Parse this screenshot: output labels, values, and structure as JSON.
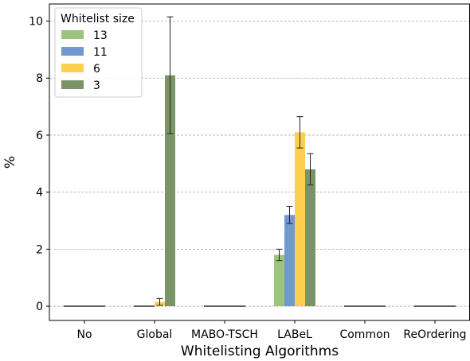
{
  "chart_data": {
    "type": "bar",
    "title": "",
    "xlabel": "Whitelisting Algorithms",
    "ylabel": "%",
    "ylim": [
      -0.5,
      10.6
    ],
    "yticks": [
      0,
      2,
      4,
      6,
      8,
      10
    ],
    "grid": "y-dashed",
    "legend": {
      "title": "Whitelist size",
      "placement": "top-left"
    },
    "categories": [
      "No",
      "Global",
      "MABO-TSCH",
      "LABeL",
      "Common",
      "ReOrdering"
    ],
    "series": [
      {
        "name": "13",
        "color": "#9dc47c",
        "values": [
          0,
          0,
          0,
          1.8,
          0,
          0
        ],
        "errors": [
          0,
          0,
          0,
          0.2,
          0,
          0
        ]
      },
      {
        "name": "11",
        "color": "#7199d0",
        "values": [
          0,
          0,
          0,
          3.2,
          0,
          0
        ],
        "errors": [
          0,
          0,
          0,
          0.3,
          0,
          0
        ]
      },
      {
        "name": "6",
        "color": "#fcd04e",
        "values": [
          0,
          0.15,
          0,
          6.1,
          0,
          0
        ],
        "errors": [
          0,
          0.12,
          0,
          0.55,
          0,
          0
        ]
      },
      {
        "name": "3",
        "color": "#7a9468",
        "values": [
          0,
          8.1,
          0,
          4.8,
          0,
          0
        ],
        "errors": [
          0,
          2.05,
          0,
          0.55,
          0,
          0
        ]
      }
    ]
  }
}
